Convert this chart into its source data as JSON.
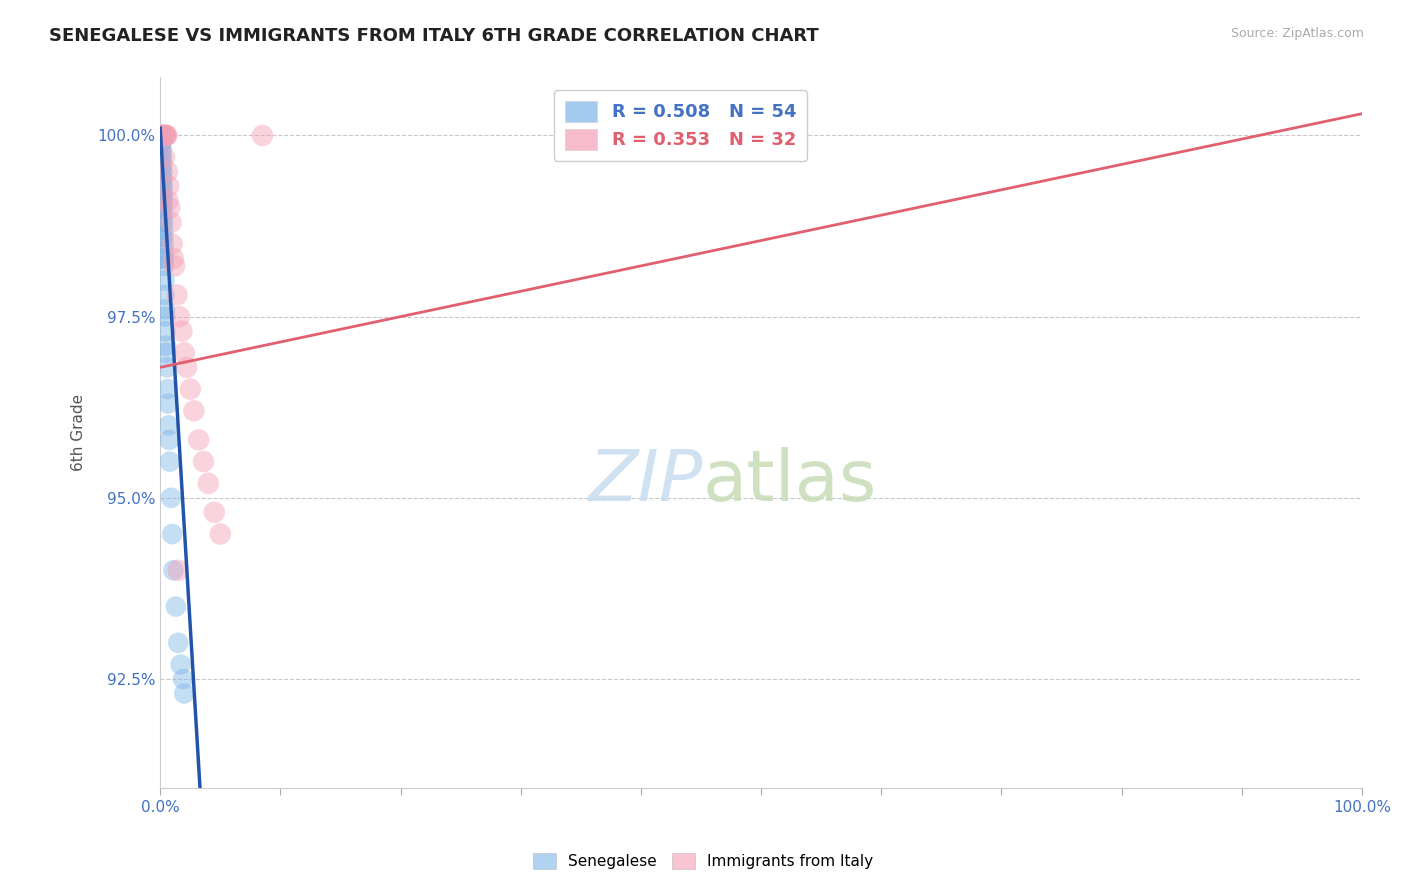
{
  "title": "SENEGALESE VS IMMIGRANTS FROM ITALY 6TH GRADE CORRELATION CHART",
  "source": "Source: ZipAtlas.com",
  "ylabel": "6th Grade",
  "blue_color": "#7EB6E8",
  "pink_color": "#F4A0B5",
  "blue_line_color": "#2255AA",
  "pink_line_color": "#E06070",
  "y_min": 91.0,
  "y_max": 100.8,
  "x_min": 0.0,
  "x_max": 100.0,
  "y_ticks": [
    92.5,
    95.0,
    97.5,
    100.0
  ],
  "x_ticks": [
    0,
    10,
    20,
    30,
    40,
    50,
    60,
    70,
    80,
    90,
    100
  ],
  "legend_bottom": [
    "Senegalese",
    "Immigrants from Italy"
  ],
  "legend_R_blue": "R = 0.508",
  "legend_N_blue": "N = 54",
  "legend_R_pink": "R = 0.353",
  "legend_N_pink": "N = 32",
  "watermark": "ZIPatlas",
  "blue_scatter_x": [
    0.05,
    0.05,
    0.07,
    0.08,
    0.1,
    0.1,
    0.12,
    0.13,
    0.13,
    0.15,
    0.15,
    0.15,
    0.17,
    0.17,
    0.18,
    0.18,
    0.2,
    0.2,
    0.2,
    0.22,
    0.22,
    0.22,
    0.25,
    0.25,
    0.27,
    0.28,
    0.3,
    0.3,
    0.32,
    0.35,
    0.38,
    0.4,
    0.42,
    0.45,
    0.48,
    0.5,
    0.55,
    0.6,
    0.65,
    0.7,
    0.75,
    0.8,
    0.9,
    1.0,
    1.1,
    1.3,
    1.5,
    1.7,
    1.9,
    2.0,
    0.12,
    0.14,
    0.16,
    0.19
  ],
  "blue_scatter_y": [
    100.0,
    99.9,
    100.0,
    99.8,
    99.9,
    99.7,
    99.8,
    99.6,
    99.7,
    99.5,
    99.6,
    99.4,
    99.5,
    99.3,
    99.4,
    99.2,
    99.3,
    99.1,
    99.2,
    99.0,
    98.9,
    99.1,
    98.8,
    98.7,
    98.6,
    98.5,
    98.4,
    98.3,
    98.2,
    98.0,
    97.8,
    97.6,
    97.5,
    97.3,
    97.1,
    97.0,
    96.8,
    96.5,
    96.3,
    96.0,
    95.8,
    95.5,
    95.0,
    94.5,
    94.0,
    93.5,
    93.0,
    92.7,
    92.5,
    92.3,
    99.0,
    98.8,
    98.6,
    98.3
  ],
  "pink_scatter_x": [
    0.15,
    0.2,
    0.25,
    0.3,
    0.35,
    0.4,
    0.45,
    0.5,
    0.55,
    0.6,
    0.7,
    0.8,
    0.9,
    1.0,
    1.2,
    1.4,
    1.6,
    1.8,
    2.0,
    2.2,
    2.5,
    2.8,
    3.2,
    3.6,
    4.0,
    4.5,
    5.0,
    0.35,
    0.65,
    1.1,
    1.5,
    8.5
  ],
  "pink_scatter_y": [
    100.0,
    100.0,
    100.0,
    100.0,
    100.0,
    100.0,
    100.0,
    100.0,
    100.0,
    99.5,
    99.3,
    99.0,
    98.8,
    98.5,
    98.2,
    97.8,
    97.5,
    97.3,
    97.0,
    96.8,
    96.5,
    96.2,
    95.8,
    95.5,
    95.2,
    94.8,
    94.5,
    99.7,
    99.1,
    98.3,
    94.0,
    100.0
  ],
  "blue_line_x0": 0.0,
  "blue_line_y0": 100.1,
  "blue_line_x1": 1.2,
  "blue_line_y1": 96.8,
  "pink_line_x0": 0.0,
  "pink_line_x1": 100.0,
  "pink_line_y0": 96.8,
  "pink_line_y1": 100.3
}
